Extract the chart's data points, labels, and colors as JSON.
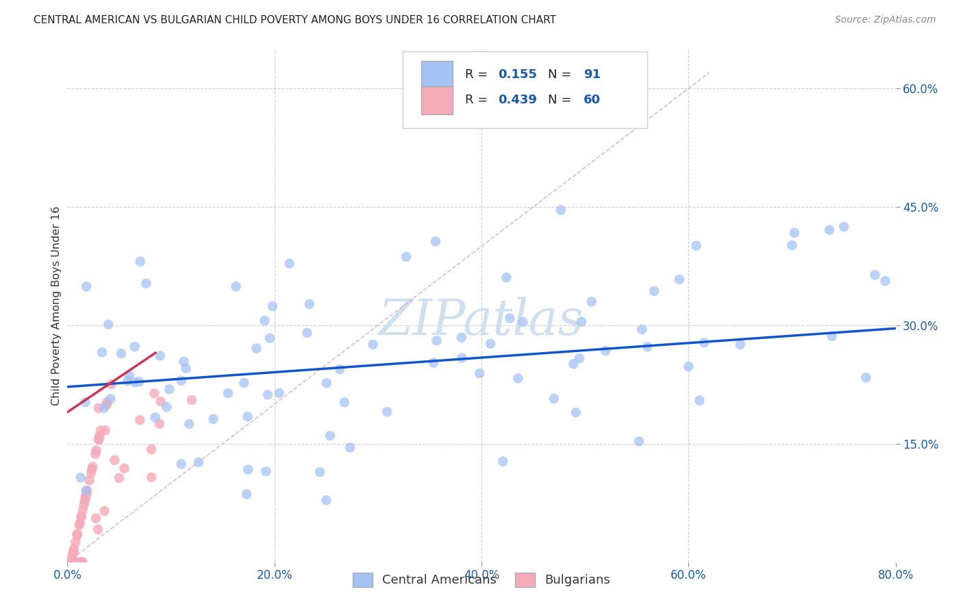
{
  "title": "CENTRAL AMERICAN VS BULGARIAN CHILD POVERTY AMONG BOYS UNDER 16 CORRELATION CHART",
  "source": "Source: ZipAtlas.com",
  "ylabel": "Child Poverty Among Boys Under 16",
  "xlim": [
    0.0,
    0.8
  ],
  "ylim": [
    0.0,
    0.65
  ],
  "xtick_labels": [
    "0.0%",
    "20.0%",
    "40.0%",
    "60.0%",
    "80.0%"
  ],
  "xtick_vals": [
    0.0,
    0.2,
    0.4,
    0.6,
    0.8
  ],
  "ytick_labels_right": [
    "15.0%",
    "30.0%",
    "45.0%",
    "60.0%"
  ],
  "ytick_vals_right": [
    0.15,
    0.3,
    0.45,
    0.6
  ],
  "ca_color": "#a4c2f4",
  "bg_color": "#f4aab9",
  "ca_R": 0.155,
  "ca_N": 91,
  "bg_R": 0.439,
  "bg_N": 60,
  "watermark": "ZIPatlas",
  "watermark_color": "#d0dff0",
  "background_color": "#ffffff",
  "grid_color": "#cccccc",
  "ca_line_color": "#1155cc",
  "bg_line_color": "#cc3355",
  "diag_color": "#e0b0bb"
}
